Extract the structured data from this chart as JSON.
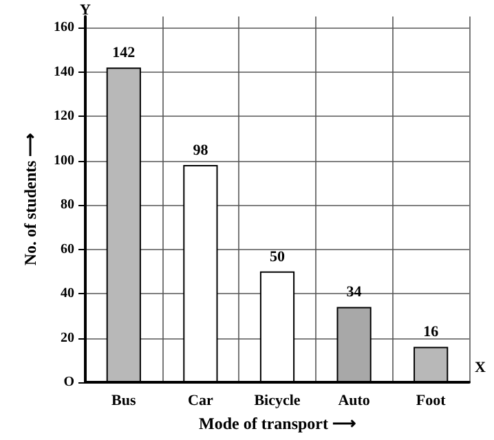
{
  "chart_data": {
    "type": "bar",
    "xlabel": "Mode of transport ⟶",
    "ylabel": "No. of students ⟶",
    "categories": [
      "Bus",
      "Car",
      "Bicycle",
      "Auto",
      "Foot"
    ],
    "values": [
      142,
      98,
      50,
      34,
      16
    ],
    "colors": [
      "#b8b8b8",
      "#ffffff",
      "#ffffff",
      "#a8a8a8",
      "#b8b8b8"
    ],
    "ylim": [
      0,
      165
    ],
    "yticks": [
      {
        "value": 0,
        "label": "O"
      },
      20,
      40,
      60,
      80,
      100,
      120,
      140,
      160
    ],
    "grid": true,
    "data_labels": true,
    "annotations": [
      "Y",
      "X"
    ]
  }
}
